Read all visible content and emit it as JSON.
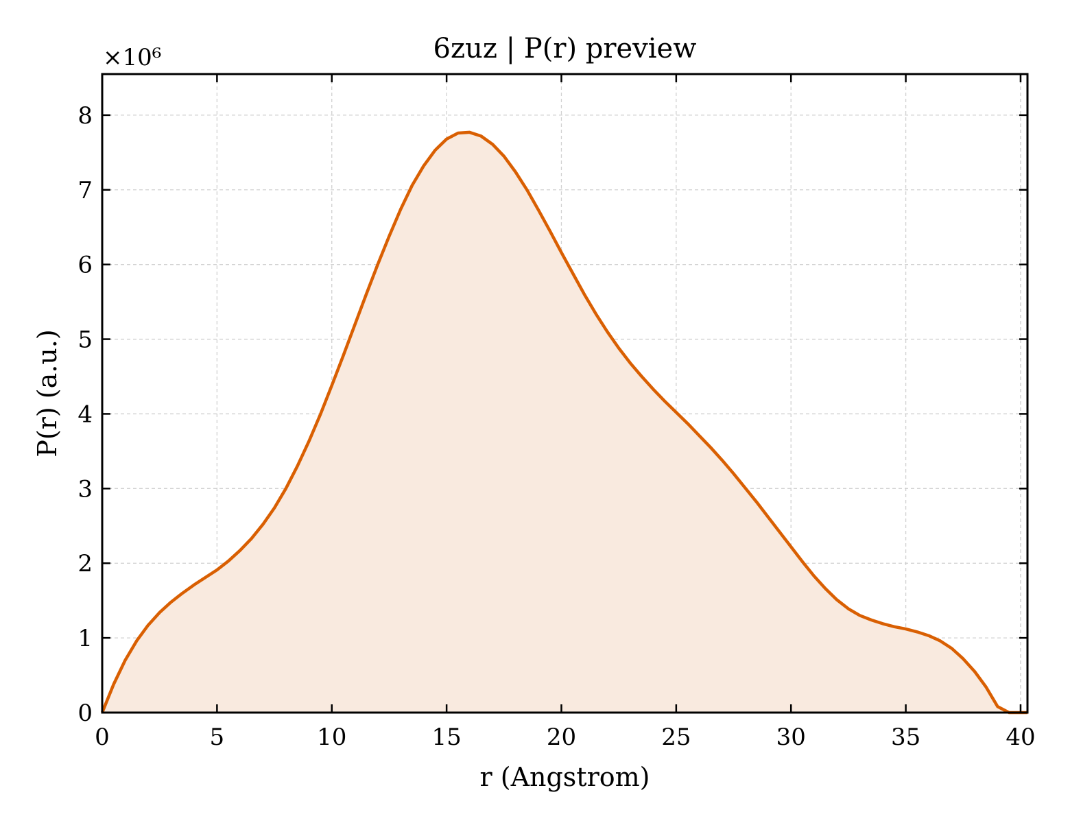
{
  "chart_data": {
    "type": "area",
    "title": "6zuz | P(r) preview",
    "xlabel": "r (Angstrom)",
    "ylabel": "P(r) (a.u.)",
    "y_multiplier_label": "×10⁶",
    "xlim": [
      0,
      40.3
    ],
    "ylim": [
      0,
      8.55
    ],
    "x_ticks": [
      0,
      5,
      10,
      15,
      20,
      25,
      30,
      35,
      40
    ],
    "y_ticks": [
      0,
      1,
      2,
      3,
      4,
      5,
      6,
      7,
      8
    ],
    "grid": true,
    "line_color": "#d95f02",
    "fill_color": "#f9eadf",
    "series": [
      {
        "x": [
          0,
          0.5,
          1,
          1.5,
          2,
          2.5,
          3,
          3.5,
          4,
          4.5,
          5,
          5.5,
          6,
          6.5,
          7,
          7.5,
          8,
          8.5,
          9,
          9.5,
          10,
          10.5,
          11,
          11.5,
          12,
          12.5,
          13,
          13.5,
          14,
          14.5,
          15,
          15.5,
          16,
          16.5,
          17,
          17.5,
          18,
          18.5,
          19,
          19.5,
          20,
          20.5,
          21,
          21.5,
          22,
          22.5,
          23,
          23.5,
          24,
          24.5,
          25,
          25.5,
          26,
          26.5,
          27,
          27.5,
          28,
          28.5,
          29,
          29.5,
          30,
          30.5,
          31,
          31.5,
          32,
          32.5,
          33,
          33.5,
          34,
          34.5,
          35,
          35.5,
          36,
          36.5,
          37,
          37.5,
          38,
          38.5,
          39,
          39.5,
          40,
          40.3
        ],
        "y": [
          0,
          0.38,
          0.7,
          0.96,
          1.17,
          1.34,
          1.48,
          1.6,
          1.71,
          1.81,
          1.91,
          2.03,
          2.17,
          2.33,
          2.52,
          2.74,
          3.0,
          3.3,
          3.63,
          3.99,
          4.38,
          4.78,
          5.19,
          5.6,
          6.0,
          6.38,
          6.74,
          7.06,
          7.32,
          7.53,
          7.68,
          7.76,
          7.77,
          7.72,
          7.61,
          7.45,
          7.24,
          7.0,
          6.73,
          6.45,
          6.16,
          5.88,
          5.6,
          5.34,
          5.1,
          4.88,
          4.68,
          4.5,
          4.33,
          4.17,
          4.02,
          3.87,
          3.71,
          3.55,
          3.38,
          3.2,
          3.01,
          2.82,
          2.62,
          2.42,
          2.22,
          2.02,
          1.83,
          1.66,
          1.51,
          1.39,
          1.3,
          1.24,
          1.19,
          1.15,
          1.12,
          1.08,
          1.03,
          0.96,
          0.86,
          0.72,
          0.55,
          0.34,
          0.08,
          0.0,
          0.0,
          0.0
        ]
      }
    ]
  }
}
